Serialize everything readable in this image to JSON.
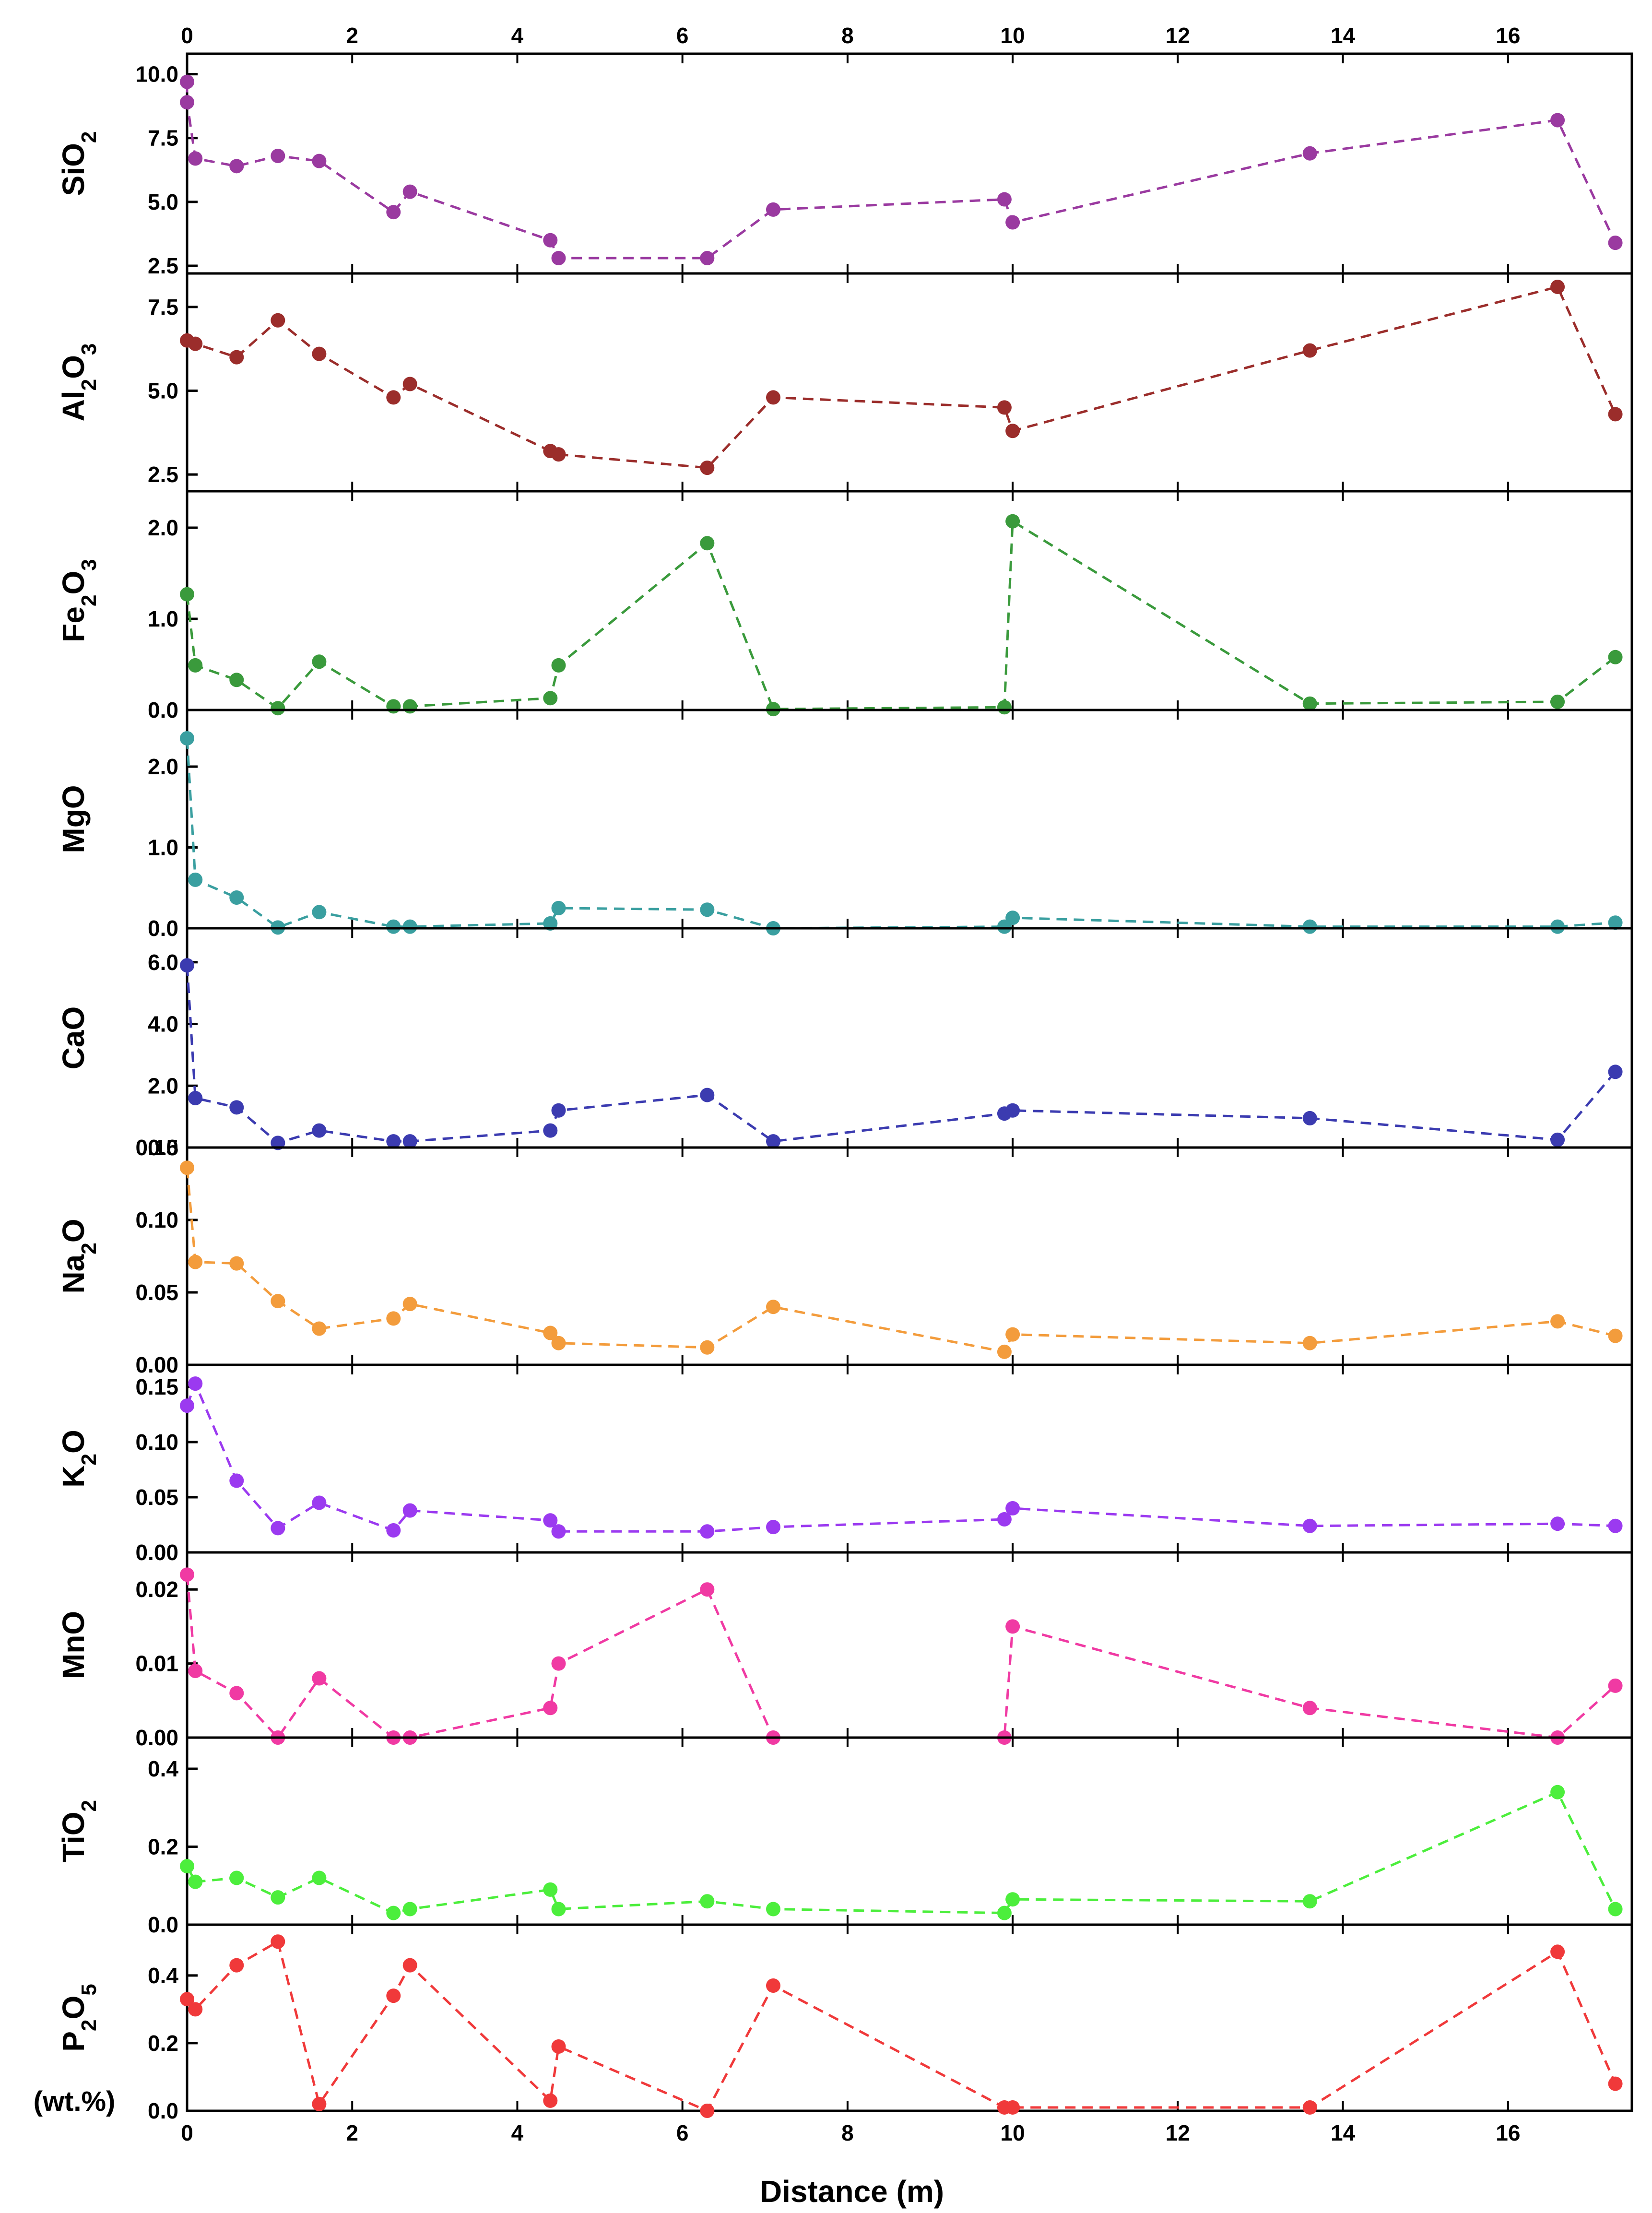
{
  "figure": {
    "x_axis_title": "Distance (m)",
    "unit_label": "(wt.%)"
  },
  "chart_data": {
    "type": "line",
    "x_range": [
      0,
      17.5
    ],
    "x_ticks": [
      0,
      2,
      4,
      6,
      8,
      10,
      12,
      14,
      16
    ],
    "x_tick_labels": [
      "0",
      "2",
      "4",
      "6",
      "8",
      "10",
      "12",
      "14",
      "16"
    ],
    "x_ticks_top": true,
    "xlabel": "Distance (m)",
    "grid": false,
    "line_style": "dashed",
    "marker": "circle",
    "x": [
      0.0,
      0.1,
      0.6,
      1.1,
      1.6,
      2.5,
      2.7,
      4.4,
      4.5,
      6.3,
      7.1,
      9.9,
      10.0,
      13.6,
      16.6,
      17.3
    ],
    "panels": [
      {
        "id": "sio2",
        "label_main": "SiO",
        "label_sub": "2",
        "label_tail": "",
        "color": "#9a3aa0",
        "ylim": [
          2.2,
          10.8
        ],
        "yticks": [
          2.5,
          5.0,
          7.5,
          10.0
        ],
        "ytick_labels": [
          "2.5",
          "5.0",
          "7.5",
          "10.0"
        ],
        "x": [
          0.0,
          0.0,
          0.1,
          0.6,
          1.1,
          1.6,
          2.5,
          2.7,
          4.4,
          4.5,
          6.3,
          7.1,
          9.9,
          10.0,
          13.6,
          16.6,
          17.3
        ],
        "values": [
          9.7,
          8.9,
          6.7,
          6.4,
          6.8,
          6.6,
          4.6,
          5.4,
          3.5,
          2.8,
          2.8,
          4.7,
          5.1,
          4.2,
          6.9,
          8.2,
          3.4
        ]
      },
      {
        "id": "al2o3",
        "label_main": "Al",
        "label_sub": "2",
        "label_tail": "O",
        "label_sub2": "3",
        "color": "#9b2d2b",
        "ylim": [
          2.0,
          8.5
        ],
        "yticks": [
          2.5,
          5.0,
          7.5
        ],
        "ytick_labels": [
          "2.5",
          "5.0",
          "7.5"
        ],
        "x": [
          0.0,
          0.1,
          0.6,
          1.1,
          1.6,
          2.5,
          2.7,
          4.4,
          4.5,
          6.3,
          7.1,
          9.9,
          10.0,
          13.6,
          16.6,
          17.3
        ],
        "values": [
          6.5,
          6.4,
          6.0,
          7.1,
          6.1,
          4.8,
          5.2,
          3.2,
          3.1,
          2.7,
          4.8,
          4.5,
          3.8,
          6.2,
          8.1,
          4.3
        ]
      },
      {
        "id": "fe2o3",
        "label_main": "Fe",
        "label_sub": "2",
        "label_tail": "O",
        "label_sub2": "3",
        "color": "#3a9a3c",
        "ylim": [
          0.0,
          2.4
        ],
        "yticks": [
          0.0,
          1.0,
          2.0
        ],
        "ytick_labels": [
          "0.0",
          "1.0",
          "2.0"
        ],
        "x": [
          0.0,
          0.1,
          0.6,
          1.1,
          1.6,
          2.5,
          2.7,
          4.4,
          4.5,
          6.3,
          7.1,
          9.9,
          10.0,
          13.6,
          16.6,
          17.3
        ],
        "values": [
          1.27,
          0.49,
          0.33,
          0.02,
          0.53,
          0.04,
          0.04,
          0.13,
          0.49,
          1.83,
          0.01,
          0.03,
          2.07,
          0.07,
          0.09,
          0.58
        ]
      },
      {
        "id": "mgo",
        "label_main": "MgO",
        "label_sub": "",
        "label_tail": "",
        "color": "#3a9fa0",
        "ylim": [
          0.0,
          2.7
        ],
        "yticks": [
          0.0,
          1.0,
          2.0
        ],
        "ytick_labels": [
          "0.0",
          "1.0",
          "2.0"
        ],
        "x": [
          0.0,
          0.1,
          0.6,
          1.1,
          1.6,
          2.5,
          2.7,
          4.4,
          4.5,
          6.3,
          7.1,
          9.9,
          10.0,
          13.6,
          16.6,
          17.3
        ],
        "values": [
          2.35,
          0.6,
          0.38,
          0.01,
          0.2,
          0.02,
          0.02,
          0.06,
          0.25,
          0.23,
          0.0,
          0.02,
          0.13,
          0.02,
          0.02,
          0.07
        ]
      },
      {
        "id": "cao",
        "label_main": "CaO",
        "label_sub": "",
        "label_tail": "",
        "color": "#3b3bb0",
        "ylim": [
          0.0,
          7.1
        ],
        "yticks": [
          0.0,
          2.0,
          4.0,
          6.0
        ],
        "ytick_labels": [
          "0.0",
          "2.0",
          "4.0",
          "6.0"
        ],
        "x": [
          0.0,
          0.1,
          0.6,
          1.1,
          1.6,
          2.5,
          2.7,
          4.4,
          4.5,
          6.3,
          7.1,
          9.9,
          10.0,
          13.6,
          16.6,
          17.3
        ],
        "values": [
          5.9,
          1.6,
          1.3,
          0.15,
          0.55,
          0.2,
          0.2,
          0.55,
          1.2,
          1.7,
          0.2,
          1.1,
          1.2,
          0.95,
          0.25,
          2.45
        ]
      },
      {
        "id": "na2o",
        "label_main": "Na",
        "label_sub": "2",
        "label_tail": "O",
        "color": "#f39c3c",
        "ylim": [
          0.0,
          0.15
        ],
        "yticks": [
          0.0,
          0.05,
          0.1,
          0.15
        ],
        "ytick_labels": [
          "0.00",
          "0.05",
          "0.10",
          "0.15"
        ],
        "x": [
          0.0,
          0.1,
          0.6,
          1.1,
          1.6,
          2.5,
          2.7,
          4.4,
          4.5,
          6.3,
          7.1,
          9.9,
          10.0,
          13.6,
          16.6,
          17.3
        ],
        "values": [
          0.136,
          0.071,
          0.07,
          0.044,
          0.025,
          0.032,
          0.042,
          0.022,
          0.015,
          0.012,
          0.04,
          0.009,
          0.021,
          0.015,
          0.03,
          0.02
        ]
      },
      {
        "id": "k2o",
        "label_main": "K",
        "label_sub": "2",
        "label_tail": "O",
        "color": "#9b3af0",
        "ylim": [
          0.0,
          0.17
        ],
        "yticks": [
          0.0,
          0.05,
          0.1,
          0.15
        ],
        "ytick_labels": [
          "0.00",
          "0.05",
          "0.10",
          "0.15"
        ],
        "x": [
          0.0,
          0.1,
          0.6,
          1.1,
          1.6,
          2.5,
          2.7,
          4.4,
          4.5,
          6.3,
          7.1,
          9.9,
          10.0,
          13.6,
          16.6,
          17.3
        ],
        "values": [
          0.133,
          0.153,
          0.065,
          0.022,
          0.045,
          0.02,
          0.038,
          0.029,
          0.019,
          0.019,
          0.023,
          0.03,
          0.04,
          0.024,
          0.026,
          0.024
        ]
      },
      {
        "id": "mno",
        "label_main": "MnO",
        "label_sub": "",
        "label_tail": "",
        "color": "#f03aa3",
        "ylim": [
          0.0,
          0.025
        ],
        "yticks": [
          0.0,
          0.01,
          0.02
        ],
        "ytick_labels": [
          "0.00",
          "0.01",
          "0.02"
        ],
        "x": [
          0.0,
          0.1,
          0.6,
          1.1,
          1.6,
          2.5,
          2.7,
          4.4,
          4.5,
          6.3,
          7.1,
          9.9,
          10.0,
          13.6,
          16.6,
          17.3
        ],
        "values": [
          0.022,
          0.009,
          0.006,
          0.0,
          0.008,
          0.0,
          0.0,
          0.004,
          0.01,
          0.02,
          0.0,
          0.0,
          0.015,
          0.004,
          0.0,
          0.007
        ]
      },
      {
        "id": "tio2",
        "label_main": "TiO",
        "label_sub": "2",
        "label_tail": "",
        "color": "#4cee3c",
        "ylim": [
          0.0,
          0.48
        ],
        "yticks": [
          0.0,
          0.2,
          0.4
        ],
        "ytick_labels": [
          "0.0",
          "0.2",
          "0.4"
        ],
        "x": [
          0.0,
          0.1,
          0.6,
          1.1,
          1.6,
          2.5,
          2.7,
          4.4,
          4.5,
          6.3,
          7.1,
          9.9,
          10.0,
          13.6,
          16.6,
          17.3
        ],
        "values": [
          0.15,
          0.11,
          0.12,
          0.07,
          0.12,
          0.03,
          0.04,
          0.09,
          0.04,
          0.06,
          0.04,
          0.03,
          0.065,
          0.06,
          0.34,
          0.04
        ]
      },
      {
        "id": "p2o5",
        "label_main": "P",
        "label_sub": "2",
        "label_tail": "O",
        "label_sub2": "5",
        "color": "#f0393a",
        "ylim": [
          0.0,
          0.55
        ],
        "yticks": [
          0.0,
          0.2,
          0.4
        ],
        "ytick_labels": [
          "0.0",
          "0.2",
          "0.4"
        ],
        "x": [
          0.0,
          0.1,
          0.6,
          1.1,
          1.6,
          2.5,
          2.7,
          4.4,
          4.5,
          6.3,
          7.1,
          9.9,
          10.0,
          13.6,
          16.6,
          17.3
        ],
        "values": [
          0.33,
          0.3,
          0.43,
          0.5,
          0.02,
          0.34,
          0.43,
          0.03,
          0.19,
          0.0,
          0.37,
          0.01,
          0.01,
          0.01,
          0.47,
          0.08
        ]
      }
    ]
  }
}
